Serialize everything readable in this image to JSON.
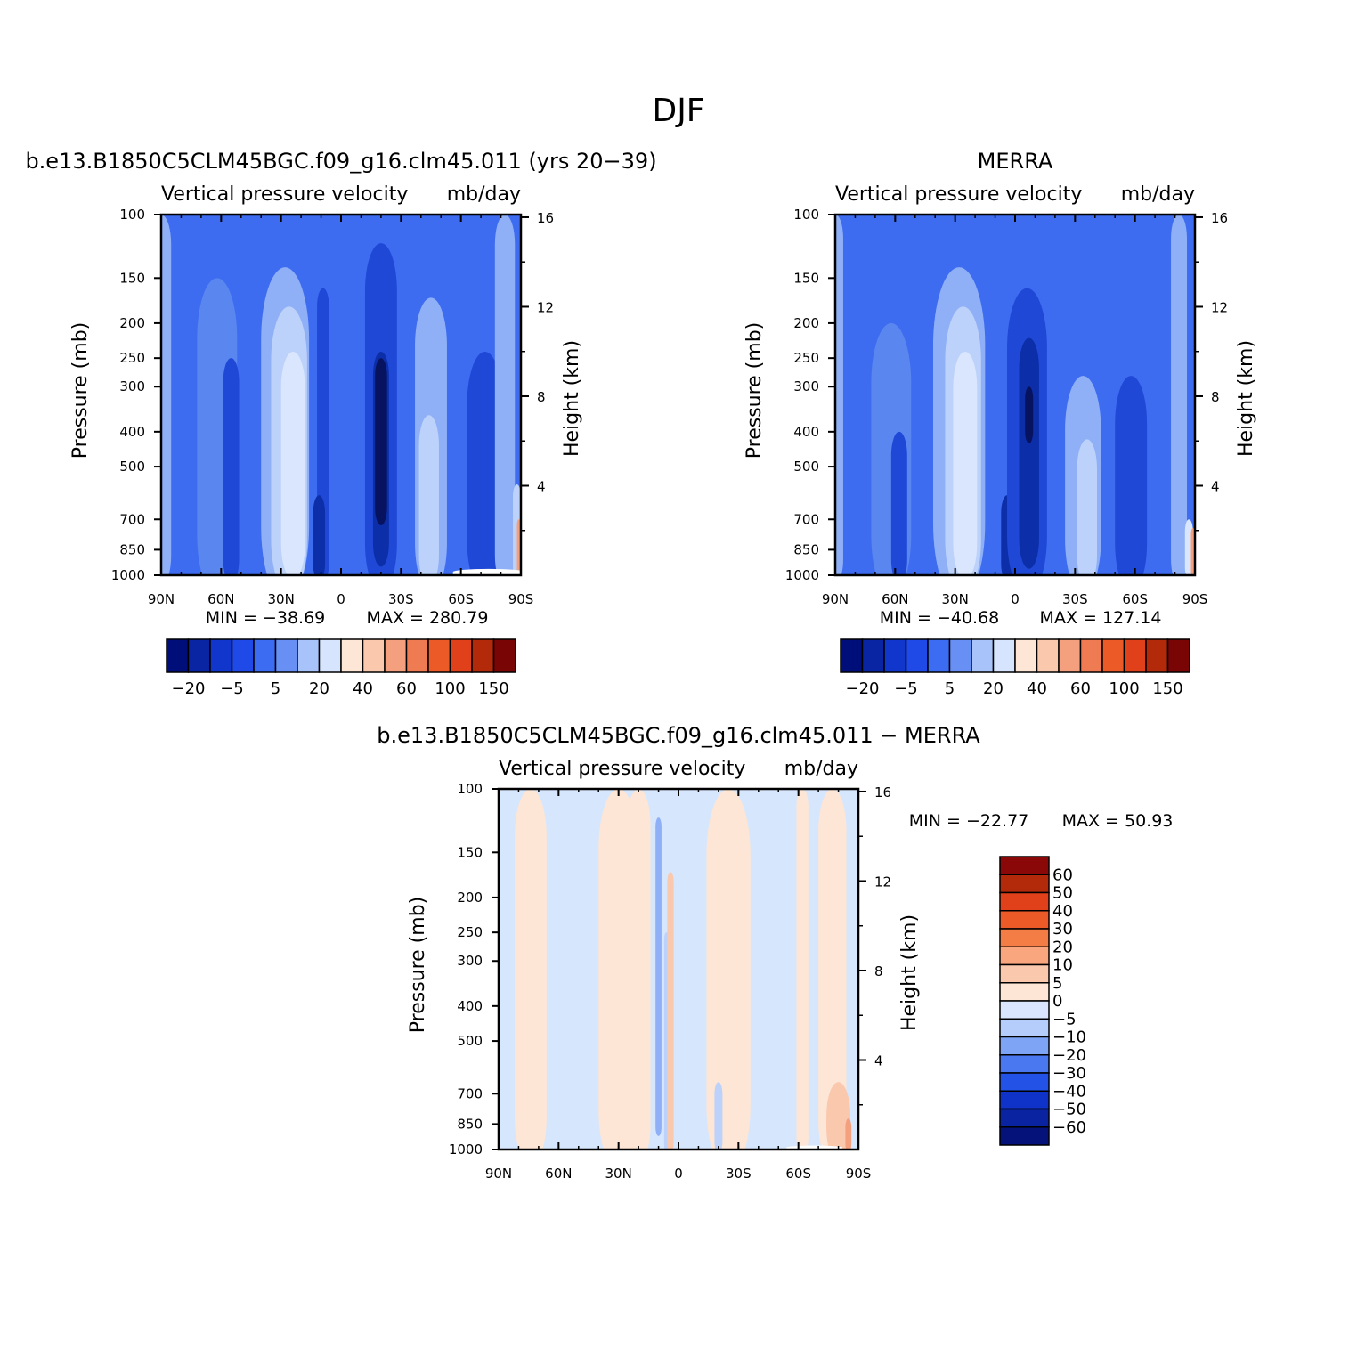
{
  "figure_title": "DJF",
  "colors": {
    "neg4": "#0c2ea8",
    "neg3": "#1f48d6",
    "neg2": "#3a66ee",
    "neg1": "#5a86f0",
    "neg0": "#8fb0f6",
    "lt": "#bcd2fa",
    "vlt": "#d9e6fd",
    "warm1": "#fde6d6",
    "warm2": "#f9c8ad",
    "warm3": "#f4a07f",
    "warm4": "#ef7b52"
  },
  "chart_data": [
    {
      "type": "heatmap",
      "title": "b.e13.B1850C5CLM45BGC.f09_g16.clm45.011 (yrs 20−39)",
      "subtitle_left": "Vertical pressure velocity",
      "subtitle_right": "mb/day",
      "ylabel": "Pressure (mb)",
      "ylabel_right": "Height (km)",
      "x_ticks": [
        "90N",
        "60N",
        "30N",
        "0",
        "30S",
        "60S",
        "90S"
      ],
      "y_ticks": [
        100,
        150,
        200,
        250,
        300,
        400,
        500,
        700,
        850,
        1000
      ],
      "y_ticks_right": [
        16,
        12,
        8,
        4
      ],
      "yscale": "log",
      "min_label": "MIN = −38.69",
      "max_label": "MAX = 280.79",
      "colorbar": {
        "orientation": "horizontal",
        "labels": [
          "−20",
          "−5",
          "5",
          "20",
          "40",
          "60",
          "100",
          "150"
        ],
        "colors": [
          "#000e7a",
          "#0a25a3",
          "#1036cc",
          "#1f4ae8",
          "#3c6cf2",
          "#6890f4",
          "#a7c3f9",
          "#d6e5fd",
          "#fde6d6",
          "#f9c8ad",
          "#f4a07f",
          "#ef7b52",
          "#ec5a28",
          "#e0401a",
          "#b32a0b",
          "#7a0505"
        ]
      }
    },
    {
      "type": "heatmap",
      "title": "MERRA",
      "subtitle_left": "Vertical pressure velocity",
      "subtitle_right": "mb/day",
      "ylabel": "Pressure (mb)",
      "ylabel_right": "Height (km)",
      "x_ticks": [
        "90N",
        "60N",
        "30N",
        "0",
        "30S",
        "60S",
        "90S"
      ],
      "y_ticks": [
        100,
        150,
        200,
        250,
        300,
        400,
        500,
        700,
        850,
        1000
      ],
      "y_ticks_right": [
        16,
        12,
        8,
        4
      ],
      "yscale": "log",
      "min_label": "MIN = −40.68",
      "max_label": "MAX = 127.14",
      "colorbar": {
        "orientation": "horizontal",
        "labels": [
          "−20",
          "−5",
          "5",
          "20",
          "40",
          "60",
          "100",
          "150"
        ],
        "colors": [
          "#000e7a",
          "#0a25a3",
          "#1036cc",
          "#1f4ae8",
          "#3c6cf2",
          "#6890f4",
          "#a7c3f9",
          "#d6e5fd",
          "#fde6d6",
          "#f9c8ad",
          "#f4a07f",
          "#ef7b52",
          "#ec5a28",
          "#e0401a",
          "#b32a0b",
          "#7a0505"
        ]
      }
    },
    {
      "type": "heatmap",
      "title": "b.e13.B1850C5CLM45BGC.f09_g16.clm45.011 − MERRA",
      "subtitle_left": "Vertical pressure velocity",
      "subtitle_right": "mb/day",
      "ylabel": "Pressure (mb)",
      "ylabel_right": "Height (km)",
      "x_ticks": [
        "90N",
        "60N",
        "30N",
        "0",
        "30S",
        "60S",
        "90S"
      ],
      "y_ticks": [
        100,
        150,
        200,
        250,
        300,
        400,
        500,
        700,
        850,
        1000
      ],
      "y_ticks_right": [
        16,
        12,
        8,
        4
      ],
      "yscale": "log",
      "min_label": "MIN = −22.77",
      "max_label": "MAX =  50.93",
      "colorbar": {
        "orientation": "vertical",
        "labels": [
          "60",
          "50",
          "40",
          "30",
          "20",
          "10",
          "5",
          "0",
          "−5",
          "−10",
          "−20",
          "−30",
          "−40",
          "−50",
          "−60"
        ],
        "colors": [
          "#8a0808",
          "#b32a0b",
          "#e0401a",
          "#ec5a28",
          "#f47c45",
          "#f9a57e",
          "#fac8ad",
          "#fde6d6",
          "#d9e6fd",
          "#b4cdfa",
          "#7ea4f6",
          "#4a78f0",
          "#2352e6",
          "#0f33c8",
          "#0a23a0",
          "#04127a"
        ]
      }
    }
  ]
}
